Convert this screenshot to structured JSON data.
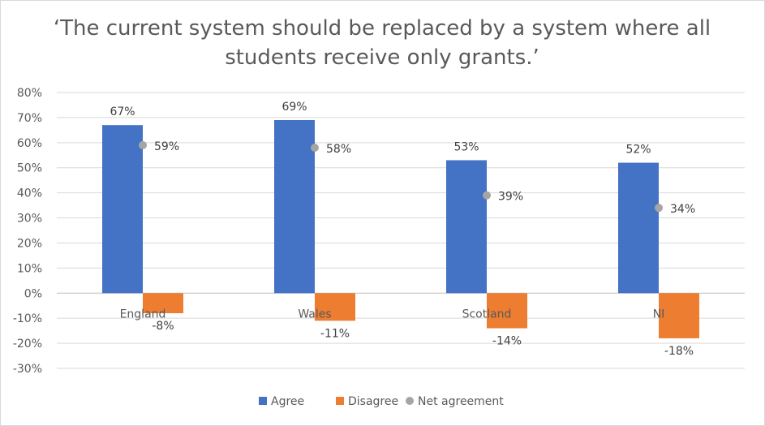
{
  "chart_data": {
    "type": "bar",
    "title": "‘The current system should be replaced by a system where all students receive only grants.’",
    "categories": [
      "England",
      "Wales",
      "Scotland",
      "NI"
    ],
    "series": [
      {
        "name": "Agree",
        "kind": "bar",
        "color": "#4472c4",
        "values": [
          67,
          69,
          53,
          52
        ],
        "labels": [
          "67%",
          "69%",
          "53%",
          "52%"
        ]
      },
      {
        "name": "Disagree",
        "kind": "bar",
        "color": "#ed7d31",
        "values": [
          -8,
          -11,
          -14,
          -18
        ],
        "labels": [
          "-8%",
          "-11%",
          "-14%",
          "-18%"
        ]
      },
      {
        "name": "Net agreement",
        "kind": "scatter",
        "color": "#a5a5a5",
        "values": [
          59,
          58,
          39,
          34
        ],
        "labels": [
          "59%",
          "58%",
          "39%",
          "34%"
        ]
      }
    ],
    "ylim": [
      -30,
      80
    ],
    "yticks": [
      80,
      70,
      60,
      50,
      40,
      30,
      20,
      10,
      0,
      -10,
      -20,
      -30
    ],
    "ytick_labels": [
      "80%",
      "70%",
      "60%",
      "50%",
      "40%",
      "30%",
      "20%",
      "10%",
      "0%",
      "-10%",
      "-20%",
      "-30%"
    ],
    "grid": true,
    "legend": "bottom",
    "xlabel": "",
    "ylabel": ""
  }
}
